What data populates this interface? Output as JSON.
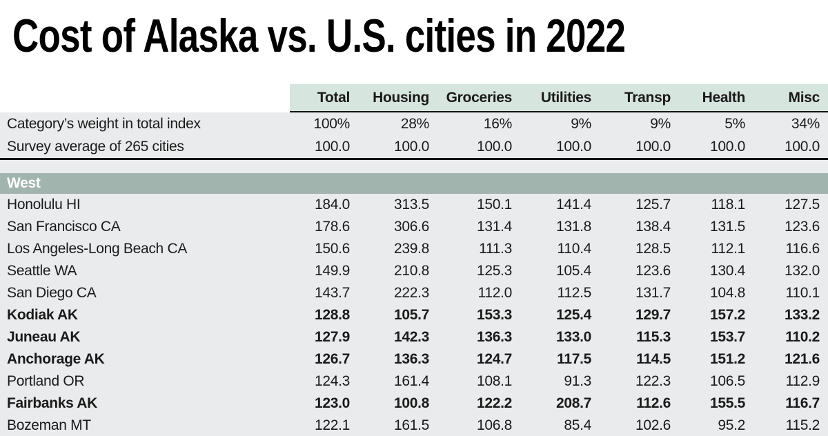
{
  "title": "Cost of Alaska vs. U.S. cities in 2022",
  "colors": {
    "header_mint": "#d7e5df",
    "section_sage": "#a2b4ae",
    "row_background": "#eaebec",
    "rule_black": "#141414",
    "section_text": "#ffffff"
  },
  "chart_data": {
    "type": "table",
    "title": "Cost of Alaska vs. U.S. cities in 2022",
    "columns": [
      "Total",
      "Housing",
      "Groceries",
      "Utilities",
      "Transp",
      "Health",
      "Misc"
    ],
    "meta_rows": [
      {
        "label": "Category’s weight in total index",
        "values": [
          "100%",
          "28%",
          "16%",
          "9%",
          "9%",
          "5%",
          "34%"
        ]
      },
      {
        "label": "Survey average of 265 cities",
        "values": [
          "100.0",
          "100.0",
          "100.0",
          "100.0",
          "100.0",
          "100.0",
          "100.0"
        ]
      }
    ],
    "sections": [
      {
        "name": "West",
        "rows": [
          {
            "city": "Honolulu HI",
            "bold": false,
            "values": [
              184.0,
              313.5,
              150.1,
              141.4,
              125.7,
              118.1,
              127.5
            ]
          },
          {
            "city": "San Francisco CA",
            "bold": false,
            "values": [
              178.6,
              306.6,
              131.4,
              131.8,
              138.4,
              131.5,
              123.6
            ]
          },
          {
            "city": "Los Angeles-Long Beach CA",
            "bold": false,
            "values": [
              150.6,
              239.8,
              111.3,
              110.4,
              128.5,
              112.1,
              116.6
            ]
          },
          {
            "city": "Seattle WA",
            "bold": false,
            "values": [
              149.9,
              210.8,
              125.3,
              105.4,
              123.6,
              130.4,
              132.0
            ]
          },
          {
            "city": "San Diego CA",
            "bold": false,
            "values": [
              143.7,
              222.3,
              112.0,
              112.5,
              131.7,
              104.8,
              110.1
            ]
          },
          {
            "city": "Kodiak AK",
            "bold": true,
            "values": [
              128.8,
              105.7,
              153.3,
              125.4,
              129.7,
              157.2,
              133.2
            ]
          },
          {
            "city": "Juneau AK",
            "bold": true,
            "values": [
              127.9,
              142.3,
              136.3,
              133.0,
              115.3,
              153.7,
              110.2
            ]
          },
          {
            "city": "Anchorage AK",
            "bold": true,
            "values": [
              126.7,
              136.3,
              124.7,
              117.5,
              114.5,
              151.2,
              121.6
            ]
          },
          {
            "city": "Portland OR",
            "bold": false,
            "values": [
              124.3,
              161.4,
              108.1,
              91.3,
              122.3,
              106.5,
              112.9
            ]
          },
          {
            "city": "Fairbanks AK",
            "bold": true,
            "values": [
              123.0,
              100.8,
              122.2,
              208.7,
              112.6,
              155.5,
              116.7
            ]
          },
          {
            "city": "Bozeman MT",
            "bold": false,
            "values": [
              122.1,
              161.5,
              106.8,
              85.4,
              102.6,
              95.2,
              115.2
            ]
          }
        ]
      }
    ]
  }
}
